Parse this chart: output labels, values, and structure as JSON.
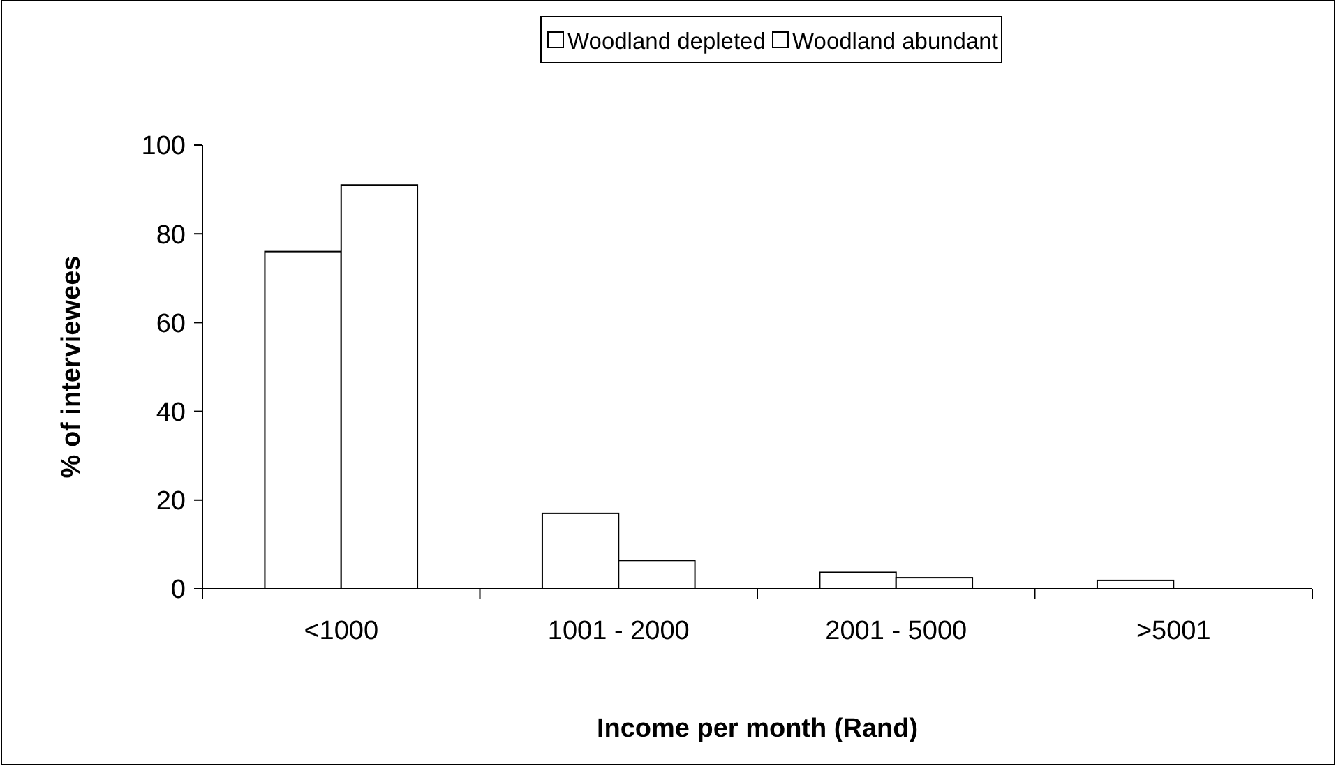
{
  "chart_data": {
    "type": "bar",
    "xlabel": "Income per month (Rand)",
    "ylabel": "% of interviewees",
    "categories": [
      "<1000",
      "1001 - 2000",
      "2001 - 5000",
      ">5001"
    ],
    "series": [
      {
        "name": "Woodland depleted",
        "color": "#ffffff",
        "values": [
          76,
          17,
          3.7,
          1.9
        ]
      },
      {
        "name": "Woodland abundant",
        "color": "#ffffff",
        "values": [
          91,
          6.4,
          2.5,
          0
        ]
      }
    ],
    "ylim": [
      0,
      100
    ],
    "yticks": [
      0,
      20,
      40,
      60,
      80,
      100
    ],
    "grid": false,
    "legend": "top"
  }
}
